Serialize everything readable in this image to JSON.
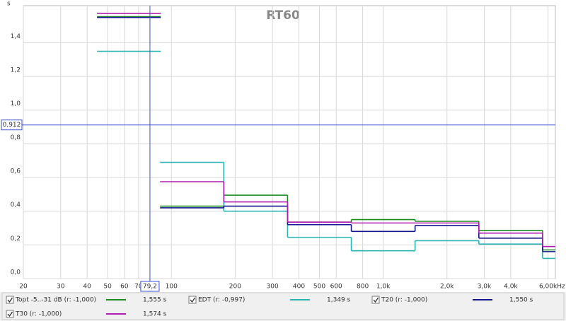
{
  "chart_data": {
    "type": "step",
    "title": "RT60",
    "y_unit": "s",
    "x_unit": "Hz",
    "x": [
      63,
      125,
      250,
      500,
      1000,
      2000,
      4000,
      8000
    ],
    "series": [
      {
        "name": "Topt -5..-31 dB (r: -1,000)",
        "color": "#1e8c1e",
        "readout": "1,555 s",
        "values": [
          1.555,
          0.43,
          0.495,
          0.335,
          0.35,
          0.34,
          0.285,
          0.17
        ]
      },
      {
        "name": "EDT (r: -0,997)",
        "color": "#2ab4b4",
        "readout": "1,349 s",
        "values": [
          1.349,
          0.69,
          0.4,
          0.245,
          0.165,
          0.225,
          0.205,
          0.12
        ]
      },
      {
        "name": "T20 (r: -1,000)",
        "color": "#16168f",
        "readout": "1,550 s",
        "values": [
          1.55,
          0.42,
          0.43,
          0.32,
          0.28,
          0.315,
          0.24,
          0.16
        ]
      },
      {
        "name": "T30 (r: -1,000)",
        "color": "#b01eb0",
        "readout": "1,574 s",
        "values": [
          1.574,
          0.575,
          0.455,
          0.335,
          0.33,
          0.33,
          0.27,
          0.19
        ]
      }
    ],
    "xscale": "log",
    "xlim": [
      20,
      6500
    ],
    "xticks": [
      20,
      30,
      40,
      50,
      60,
      70,
      100,
      200,
      300,
      400,
      500,
      600,
      800,
      {
        "value": 1000,
        "label": "1,0k"
      },
      {
        "value": 2000,
        "label": "2,0k"
      },
      {
        "value": 3000,
        "label": "3,0k"
      },
      {
        "value": 4000,
        "label": "4,0k"
      },
      {
        "value": 6000,
        "label": "6,00k"
      }
    ],
    "ylim": [
      0,
      1.62
    ],
    "yticks": [
      {
        "value": 0,
        "label": "0,0"
      },
      {
        "value": 0.2,
        "label": "0,2"
      },
      {
        "value": 0.4,
        "label": "0,4"
      },
      {
        "value": 0.6,
        "label": "0,6"
      },
      {
        "value": 0.8,
        "label": "0,8"
      },
      {
        "value": 1.0,
        "label": "1,0"
      },
      {
        "value": 1.2,
        "label": "1,2"
      },
      {
        "value": 1.4,
        "label": "1,4"
      }
    ],
    "grid": true,
    "cursor": {
      "x": 79.2,
      "x_label": "79,2",
      "y": 0.912,
      "y_label": "0,912",
      "color": "#3a4fd0"
    }
  }
}
